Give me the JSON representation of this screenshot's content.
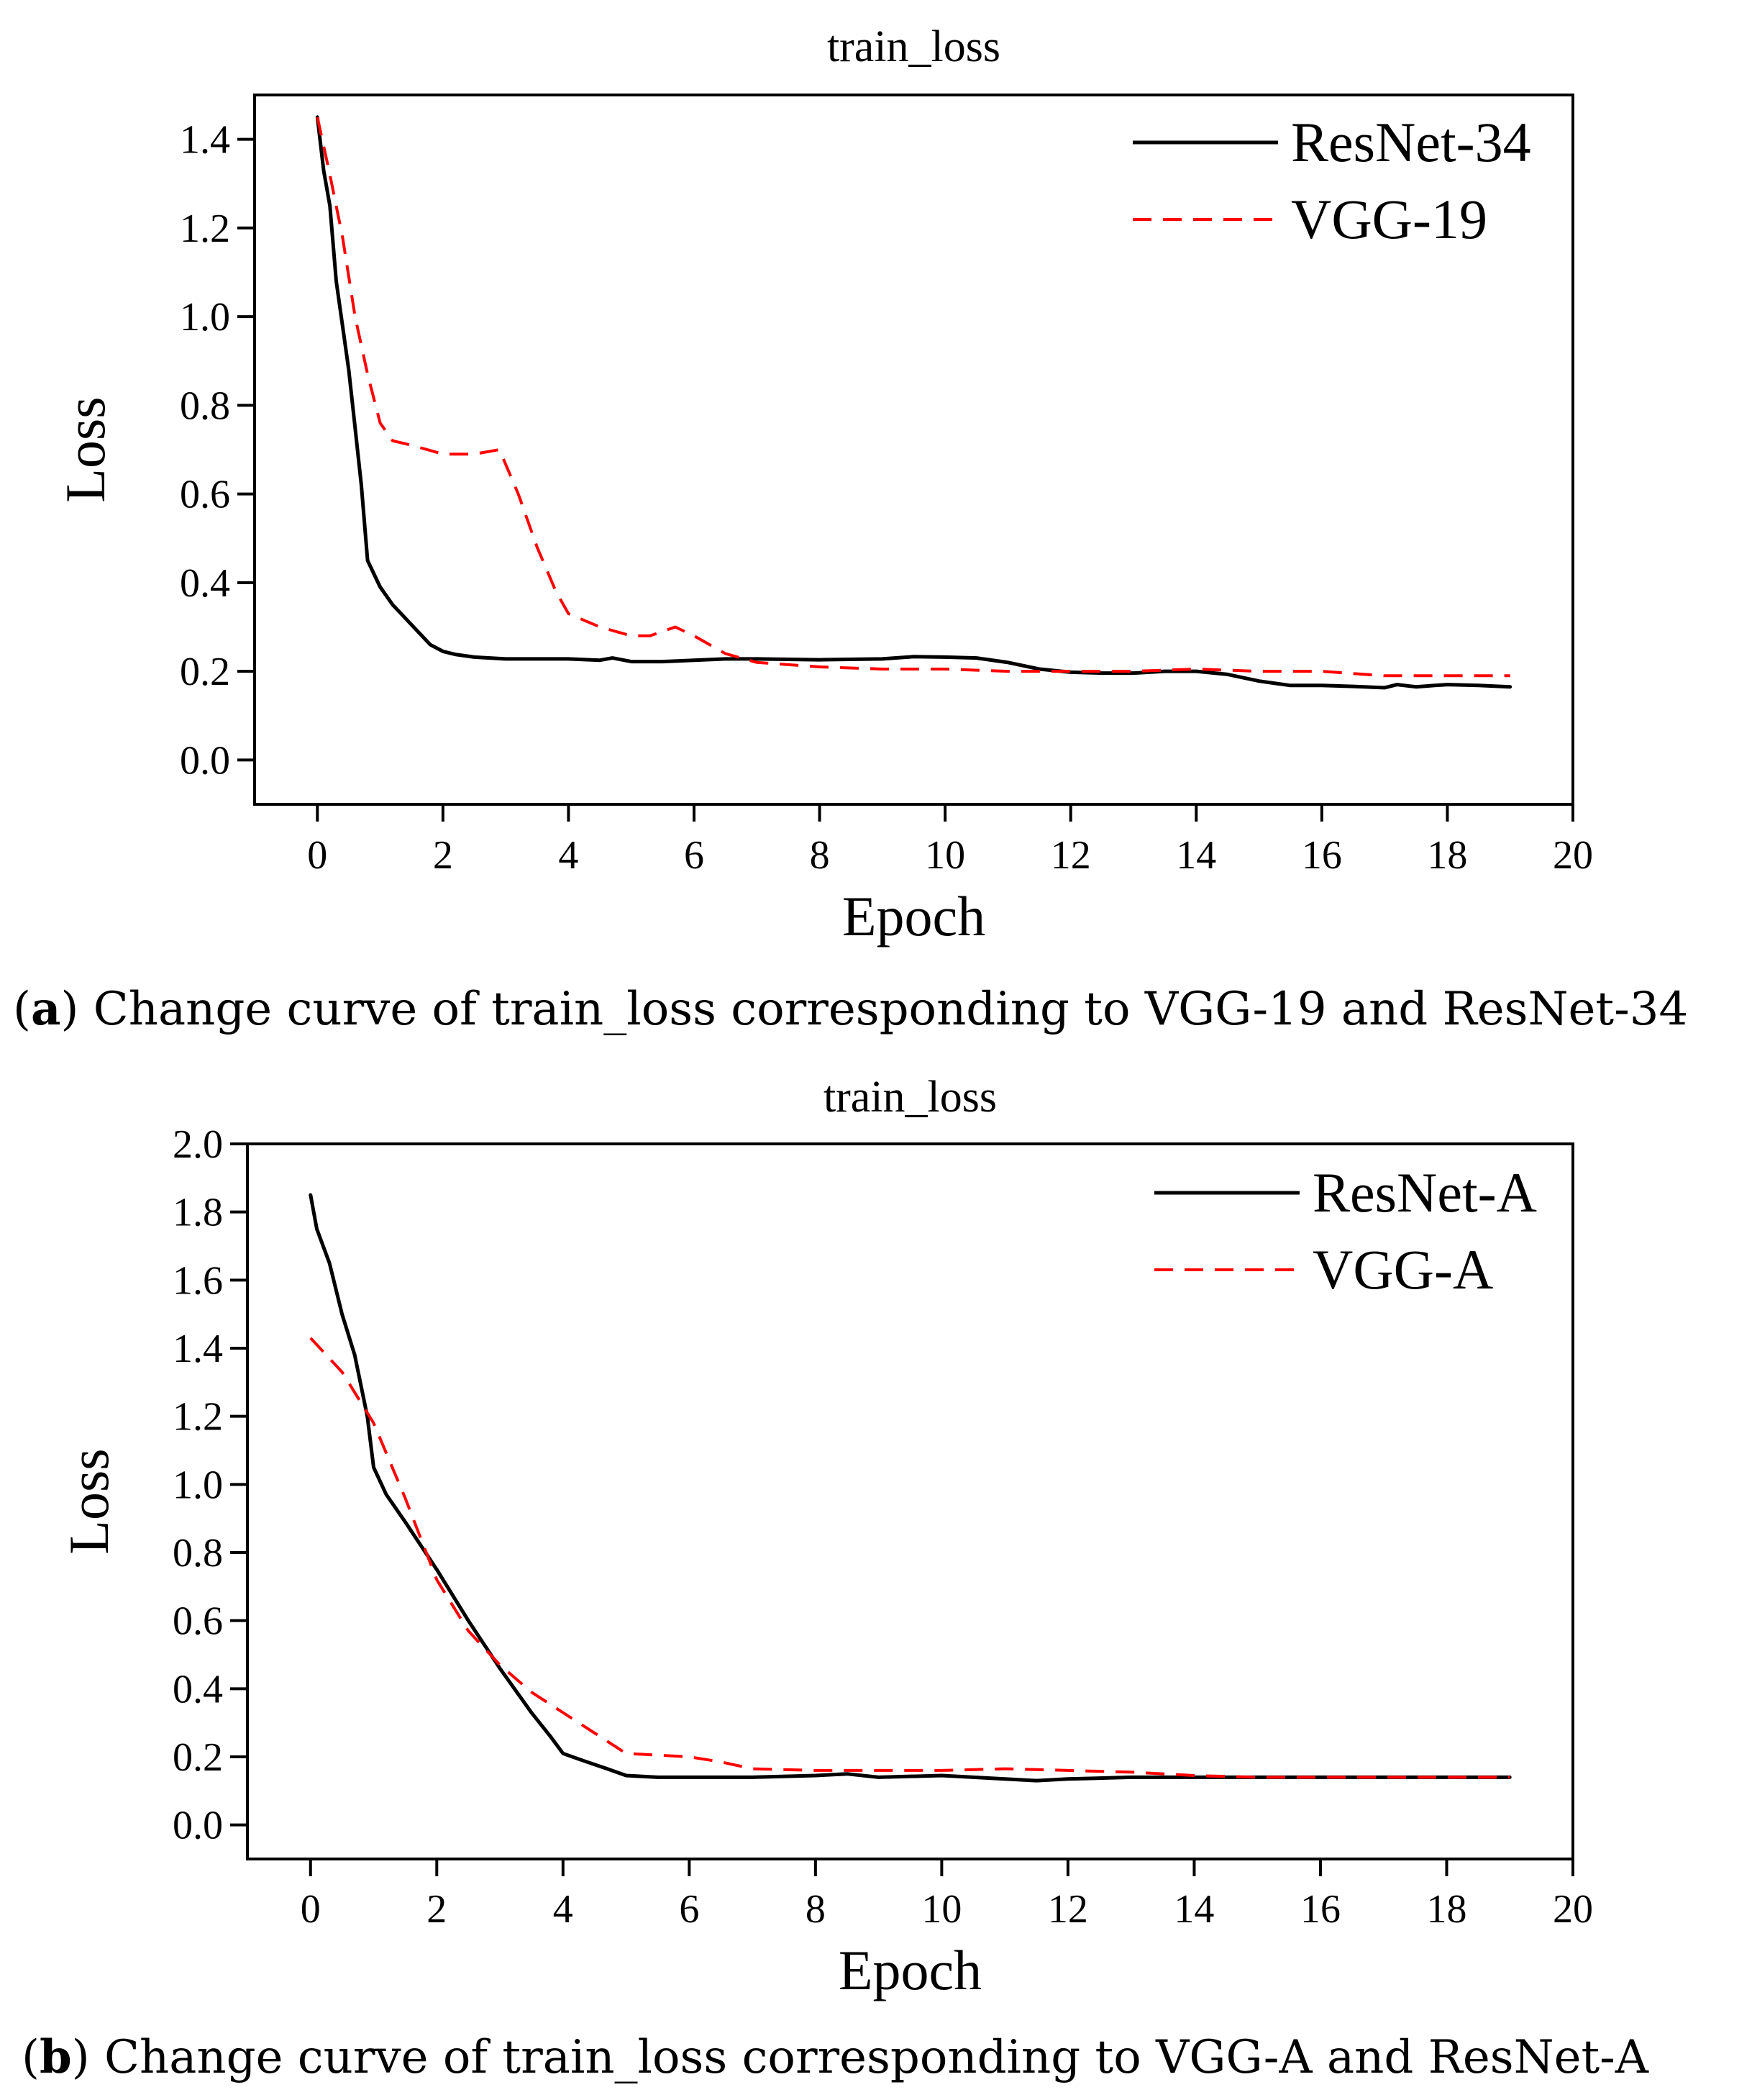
{
  "captions": {
    "a": {
      "letter": "a",
      "text": "Change curve of train_loss corresponding to VGG-19 and ResNet-34"
    },
    "b": {
      "letter": "b",
      "text": "Change curve of train_loss corresponding to VGG-A and ResNet-A"
    }
  },
  "chart_data": [
    {
      "id": "a",
      "type": "line",
      "title": "train_loss",
      "xlabel": "Epoch",
      "ylabel": "Loss",
      "xlim": [
        -1,
        20
      ],
      "ylim": [
        -0.1,
        1.5
      ],
      "xticks": [
        0,
        2,
        4,
        6,
        8,
        10,
        12,
        14,
        16,
        18,
        20
      ],
      "yticks": [
        0.0,
        0.2,
        0.4,
        0.6,
        0.8,
        1.0,
        1.2,
        1.4
      ],
      "ytick_labels": [
        "0.0",
        "0.2",
        "0.4",
        "0.6",
        "0.8",
        "1.0",
        "1.2",
        "1.4"
      ],
      "legend_position": "top-right",
      "grid": false,
      "series": [
        {
          "name": "ResNet-34",
          "color": "#000000",
          "style": "solid",
          "x": [
            0,
            0.1,
            0.2,
            0.3,
            0.4,
            0.5,
            0.6,
            0.7,
            0.8,
            0.9,
            1.0,
            1.2,
            1.4,
            1.6,
            1.8,
            2.0,
            2.2,
            2.5,
            3.0,
            3.5,
            4.0,
            4.5,
            4.7,
            5.0,
            5.5,
            6.0,
            6.5,
            7.0,
            8.0,
            9.0,
            9.5,
            10.0,
            10.5,
            11.0,
            11.5,
            12.0,
            12.5,
            13.0,
            13.5,
            14.0,
            14.5,
            15.0,
            15.5,
            16.0,
            16.5,
            17.0,
            17.2,
            17.5,
            17.8,
            18.0,
            18.5,
            19.0
          ],
          "y": [
            1.45,
            1.33,
            1.25,
            1.08,
            0.98,
            0.88,
            0.75,
            0.62,
            0.45,
            0.42,
            0.39,
            0.35,
            0.32,
            0.29,
            0.26,
            0.245,
            0.238,
            0.232,
            0.228,
            0.228,
            0.228,
            0.225,
            0.23,
            0.222,
            0.222,
            0.225,
            0.228,
            0.228,
            0.226,
            0.228,
            0.233,
            0.232,
            0.23,
            0.22,
            0.205,
            0.198,
            0.196,
            0.196,
            0.2,
            0.2,
            0.193,
            0.178,
            0.168,
            0.168,
            0.166,
            0.163,
            0.17,
            0.165,
            0.168,
            0.17,
            0.168,
            0.165
          ]
        },
        {
          "name": "VGG-19",
          "color": "#ff0000",
          "style": "dashed",
          "x": [
            0,
            0.2,
            0.4,
            0.6,
            0.8,
            1.0,
            1.2,
            1.5,
            2.0,
            2.5,
            2.9,
            3.2,
            3.5,
            3.8,
            4.0,
            4.5,
            5.0,
            5.3,
            5.7,
            6.0,
            6.5,
            7.0,
            8.0,
            9.0,
            10.0,
            11.0,
            12.0,
            13.0,
            14.0,
            15.0,
            16.0,
            17.0,
            18.0,
            19.0
          ],
          "y": [
            1.45,
            1.32,
            1.18,
            1.0,
            0.87,
            0.76,
            0.72,
            0.71,
            0.69,
            0.69,
            0.7,
            0.6,
            0.48,
            0.38,
            0.33,
            0.3,
            0.28,
            0.28,
            0.3,
            0.28,
            0.24,
            0.22,
            0.21,
            0.205,
            0.205,
            0.2,
            0.2,
            0.2,
            0.205,
            0.2,
            0.2,
            0.19,
            0.19,
            0.19
          ]
        }
      ]
    },
    {
      "id": "b",
      "type": "line",
      "title": "train_loss",
      "xlabel": "Epoch",
      "ylabel": "Loss",
      "xlim": [
        -1,
        20
      ],
      "ylim": [
        -0.1,
        2.0
      ],
      "xticks": [
        0,
        2,
        4,
        6,
        8,
        10,
        12,
        14,
        16,
        18,
        20
      ],
      "yticks": [
        0.0,
        0.2,
        0.4,
        0.6,
        0.8,
        1.0,
        1.2,
        1.4,
        1.6,
        1.8,
        2.0
      ],
      "ytick_labels": [
        "0.0",
        "0.2",
        "0.4",
        "0.6",
        "0.8",
        "1.0",
        "1.2",
        "1.4",
        "1.6",
        "1.8",
        "2.0"
      ],
      "legend_position": "top-right",
      "grid": false,
      "series": [
        {
          "name": "ResNet-A",
          "color": "#000000",
          "style": "solid",
          "x": [
            0,
            0.1,
            0.3,
            0.5,
            0.7,
            0.9,
            1.0,
            1.2,
            1.5,
            2.0,
            2.5,
            3.0,
            3.5,
            3.8,
            4.0,
            4.3,
            4.7,
            5.0,
            5.5,
            6.0,
            7.0,
            8.0,
            8.5,
            9.0,
            10.0,
            10.5,
            11.0,
            11.5,
            12.0,
            13.0,
            14.0,
            15.0,
            16.0,
            17.0,
            18.0,
            19.0
          ],
          "y": [
            1.85,
            1.75,
            1.65,
            1.5,
            1.38,
            1.2,
            1.05,
            0.97,
            0.89,
            0.75,
            0.6,
            0.46,
            0.33,
            0.26,
            0.21,
            0.19,
            0.165,
            0.145,
            0.14,
            0.14,
            0.14,
            0.145,
            0.15,
            0.14,
            0.145,
            0.14,
            0.135,
            0.13,
            0.135,
            0.14,
            0.14,
            0.14,
            0.14,
            0.14,
            0.14,
            0.14
          ]
        },
        {
          "name": "VGG-A",
          "color": "#ff0000",
          "style": "dashed",
          "x": [
            0,
            0.5,
            1.0,
            1.5,
            2.0,
            2.5,
            3.0,
            3.5,
            4.0,
            4.5,
            5.0,
            5.5,
            6.0,
            6.5,
            7.0,
            8.0,
            9.0,
            10.0,
            11.0,
            12.0,
            13.0,
            14.0,
            15.0,
            16.0,
            17.0,
            18.0,
            19.0
          ],
          "y": [
            1.43,
            1.33,
            1.18,
            0.96,
            0.72,
            0.57,
            0.47,
            0.39,
            0.33,
            0.27,
            0.21,
            0.205,
            0.2,
            0.185,
            0.165,
            0.16,
            0.16,
            0.16,
            0.165,
            0.16,
            0.155,
            0.145,
            0.14,
            0.14,
            0.14,
            0.14,
            0.14
          ]
        }
      ]
    }
  ]
}
